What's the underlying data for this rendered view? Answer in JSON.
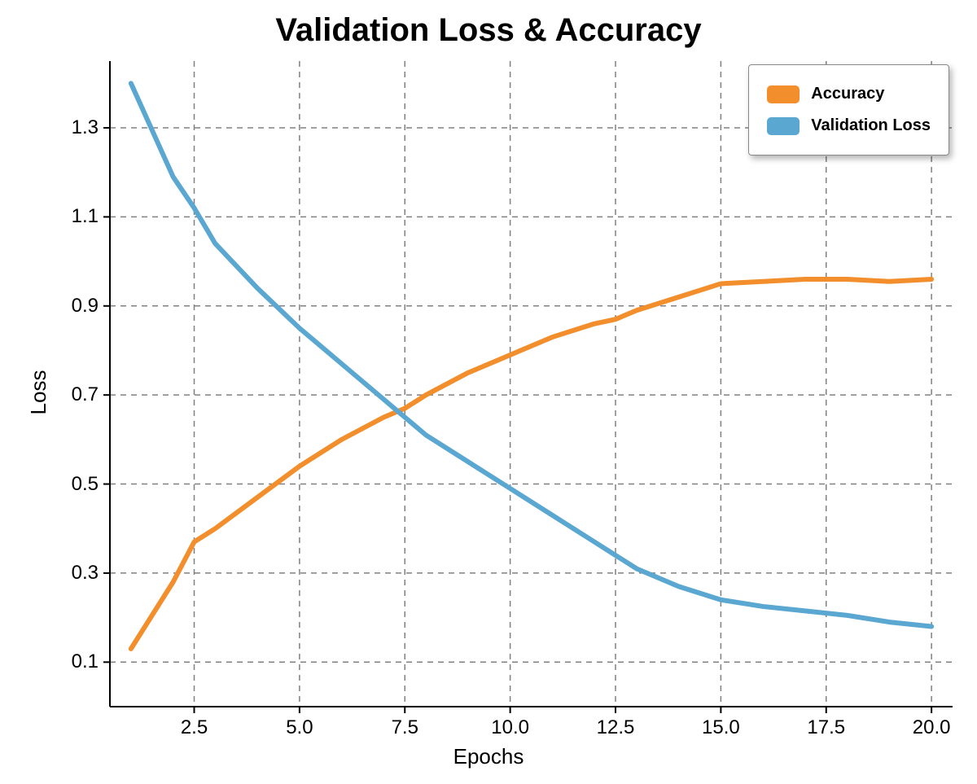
{
  "chart": {
    "type": "line",
    "title": "Validation Loss & Accuracy",
    "title_fontsize": 40,
    "title_weight": 700,
    "x_label": "Epochs",
    "y_label": "Loss",
    "label_fontsize": 26,
    "tick_fontsize": 24,
    "background_color": "#ffffff",
    "grid_color": "#808080",
    "grid_dash": "7,6",
    "axis_color": "#000000",
    "axis_width": 2,
    "line_width": 6,
    "x_domain": [
      0.5,
      20.5
    ],
    "y_domain": [
      0.0,
      1.45
    ],
    "x_ticks": [
      2.5,
      5.0,
      7.5,
      10.0,
      12.5,
      15.0,
      17.5,
      20.0
    ],
    "x_tick_labels": [
      "2.5",
      "5.0",
      "7.5",
      "10.0",
      "12.5",
      "15.0",
      "17.5",
      "20.0"
    ],
    "y_ticks": [
      0.1,
      0.3,
      0.5,
      0.7,
      0.9,
      1.1,
      1.3
    ],
    "y_tick_labels": [
      "0.1",
      "0.3",
      "0.5",
      "0.7",
      "0.9",
      "1.1",
      "1.3"
    ],
    "series": [
      {
        "name": "Accuracy",
        "color": "#f28e2c",
        "x": [
          1,
          2,
          2.5,
          3,
          4,
          5,
          6,
          7,
          7.5,
          8,
          9,
          10,
          11,
          12,
          12.5,
          13,
          14,
          15,
          16,
          17,
          18,
          19,
          20
        ],
        "y": [
          0.13,
          0.28,
          0.37,
          0.4,
          0.47,
          0.54,
          0.6,
          0.65,
          0.67,
          0.7,
          0.75,
          0.79,
          0.83,
          0.86,
          0.87,
          0.89,
          0.92,
          0.95,
          0.955,
          0.96,
          0.96,
          0.955,
          0.96
        ]
      },
      {
        "name": "Validation Loss",
        "color": "#5aa7d1",
        "x": [
          1,
          2,
          2.5,
          3,
          4,
          5,
          6,
          7,
          7.5,
          8,
          9,
          10,
          11,
          12,
          12.5,
          13,
          14,
          15,
          16,
          17,
          18,
          19,
          20
        ],
        "y": [
          1.4,
          1.19,
          1.12,
          1.04,
          0.94,
          0.85,
          0.77,
          0.69,
          0.65,
          0.61,
          0.55,
          0.49,
          0.43,
          0.37,
          0.34,
          0.31,
          0.27,
          0.24,
          0.225,
          0.215,
          0.205,
          0.19,
          0.18
        ]
      }
    ],
    "legend": {
      "position": "top-right",
      "border_color": "#888888",
      "background_color": "#ffffff",
      "label_fontsize": 20,
      "items": [
        {
          "label": "Accuracy",
          "color": "#f28e2c"
        },
        {
          "label": "Validation Loss",
          "color": "#5aa7d1"
        }
      ]
    }
  }
}
